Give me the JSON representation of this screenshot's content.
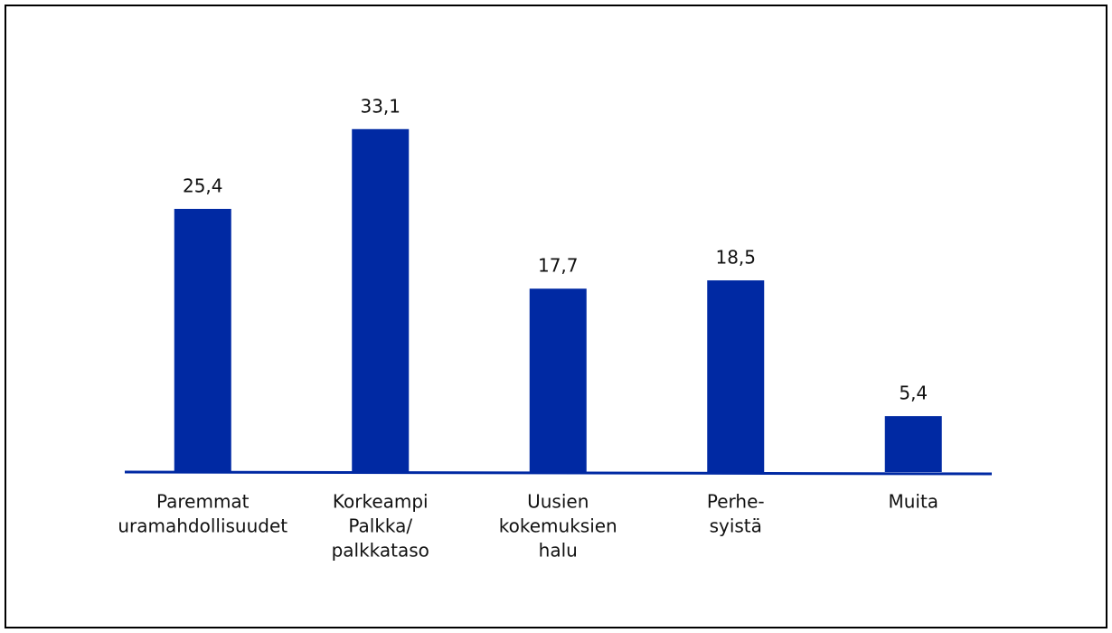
{
  "chart_data": {
    "type": "bar",
    "categories": [
      [
        "Paremmat",
        "uramahdollisuudet"
      ],
      [
        "Korkeampi",
        "Palkka/",
        "palkkataso"
      ],
      [
        "Uusien",
        "kokemuksien",
        "halu"
      ],
      [
        "Perhe-",
        "syistä"
      ],
      [
        "Muita"
      ]
    ],
    "values": [
      25.4,
      33.1,
      17.7,
      18.5,
      5.4
    ],
    "value_labels": [
      "25,4",
      "33,1",
      "17,7",
      "18,5",
      "5,4"
    ],
    "color": "#0029a3",
    "ylim": [
      0,
      35
    ]
  }
}
